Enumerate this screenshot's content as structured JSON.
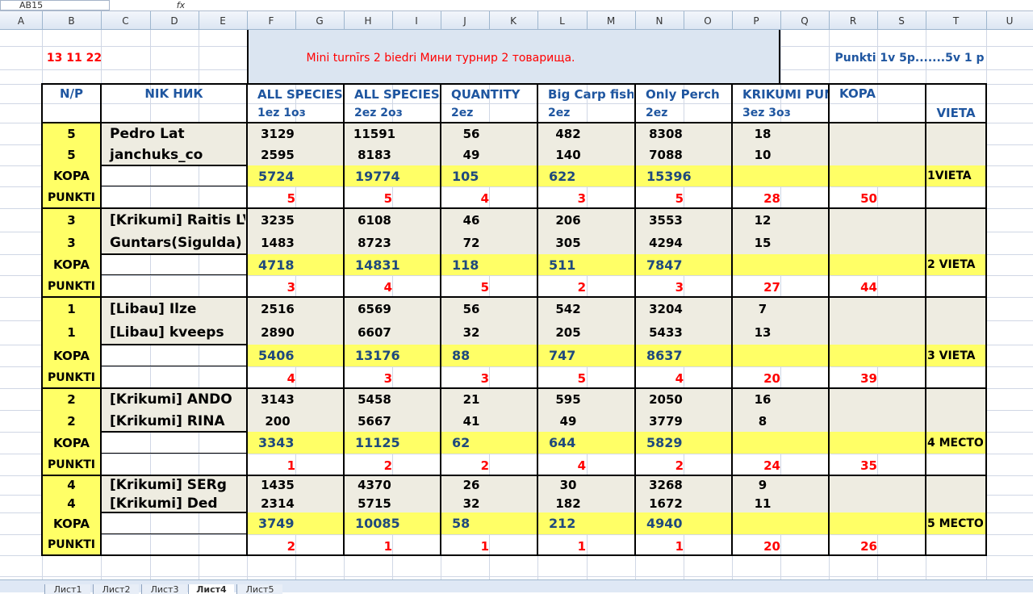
{
  "name_box": "AB15",
  "formula_icon": "fx",
  "columns": [
    "A",
    "B",
    "C",
    "D",
    "E",
    "F",
    "G",
    "H",
    "I",
    "J",
    "K",
    "L",
    "M",
    "N",
    "O",
    "P",
    "Q",
    "R",
    "S",
    "T",
    "U"
  ],
  "date": "13 11 22",
  "title": "Mini turnīrs 2 biedri  Мини турнир 2 товарища.",
  "scoring_note": "Punkti  1v   5p.......5v  1 p",
  "table": {
    "headers": {
      "np": "N/P",
      "nik": "NIK НИК",
      "score_columns": [
        [
          "ALL SPECIES",
          "1ez  1оз"
        ],
        [
          "ALL SPECIES",
          "2ez 2оз"
        ],
        [
          "QUANTITY",
          "2ez"
        ],
        [
          "Big Carp fish",
          "2ez"
        ],
        [
          "Only Perch",
          "2ez"
        ],
        [
          "KRIKUMI PUNKTI",
          "3ez 3оз"
        ]
      ],
      "kopa": "KOPA",
      "place": "VIETA"
    },
    "groups": [
      {
        "players": [
          {
            "np": 5,
            "nik": "Pedro Lat",
            "scores": [
              3129,
              11591,
              56,
              482,
              8308,
              18
            ]
          },
          {
            "np": 5,
            "nik": "janchuks_co",
            "scores": [
              2595,
              8183,
              49,
              140,
              7088,
              10
            ]
          }
        ],
        "kopa_label": "KOPA",
        "kopa": [
          5724,
          19774,
          105,
          622,
          15396
        ],
        "punkti_label": "PUNKTI",
        "punkti": [
          5,
          5,
          4,
          3,
          5,
          28
        ],
        "total": 50,
        "place": "1VIETA"
      },
      {
        "players": [
          {
            "np": 3,
            "nik": "[Krikumi] Raitis LV",
            "scores": [
              3235,
              6108,
              46,
              206,
              3553,
              12
            ]
          },
          {
            "np": 3,
            "nik": "Guntars(Sigulda)",
            "scores": [
              1483,
              8723,
              72,
              305,
              4294,
              15
            ]
          }
        ],
        "kopa_label": "KOPA",
        "kopa": [
          4718,
          14831,
          118,
          511,
          7847
        ],
        "punkti_label": "PUNKTI",
        "punkti": [
          3,
          4,
          5,
          2,
          3,
          27
        ],
        "total": 44,
        "place": "2 VIETA"
      },
      {
        "players": [
          {
            "np": 1,
            "nik": "[Libau] Ilze",
            "scores": [
              2516,
              6569,
              56,
              542,
              3204,
              7
            ]
          },
          {
            "np": 1,
            "nik": "[Libau] kveeps",
            "scores": [
              2890,
              6607,
              32,
              205,
              5433,
              13
            ]
          }
        ],
        "kopa_label": "KOPA",
        "kopa": [
          5406,
          13176,
          88,
          747,
          8637
        ],
        "punkti_label": "PUNKTI",
        "punkti": [
          4,
          3,
          3,
          5,
          4,
          20
        ],
        "total": 39,
        "place": "3 VIETA"
      },
      {
        "players": [
          {
            "np": 2,
            "nik": "[Krikumi] ANDO",
            "scores": [
              3143,
              5458,
              21,
              595,
              2050,
              16
            ]
          },
          {
            "np": 2,
            "nik": "[Krikumi] RINA",
            "scores": [
              200,
              5667,
              41,
              49,
              3779,
              8
            ]
          }
        ],
        "kopa_label": "KOPA",
        "kopa": [
          3343,
          11125,
          62,
          644,
          5829
        ],
        "punkti_label": "PUNKTI",
        "punkti": [
          1,
          2,
          2,
          4,
          2,
          24
        ],
        "total": 35,
        "place": "4 МЕСТО"
      },
      {
        "players": [
          {
            "np": 4,
            "nik": "[Krikumi] SERg",
            "scores": [
              1435,
              4370,
              26,
              30,
              3268,
              9
            ]
          },
          {
            "np": 4,
            "nik": "[Krikumi] Ded",
            "scores": [
              2314,
              5715,
              32,
              182,
              1672,
              11
            ]
          }
        ],
        "kopa_label": "KOPA",
        "kopa": [
          3749,
          10085,
          58,
          212,
          4940
        ],
        "punkti_label": "PUNKTI",
        "punkti": [
          2,
          1,
          1,
          1,
          1,
          20
        ],
        "total": 26,
        "place": "5 МЕСТО"
      }
    ]
  },
  "sheet_tabs": [
    "Лист1",
    "Лист2",
    "Лист3",
    "Лист4",
    "Лист5"
  ]
}
